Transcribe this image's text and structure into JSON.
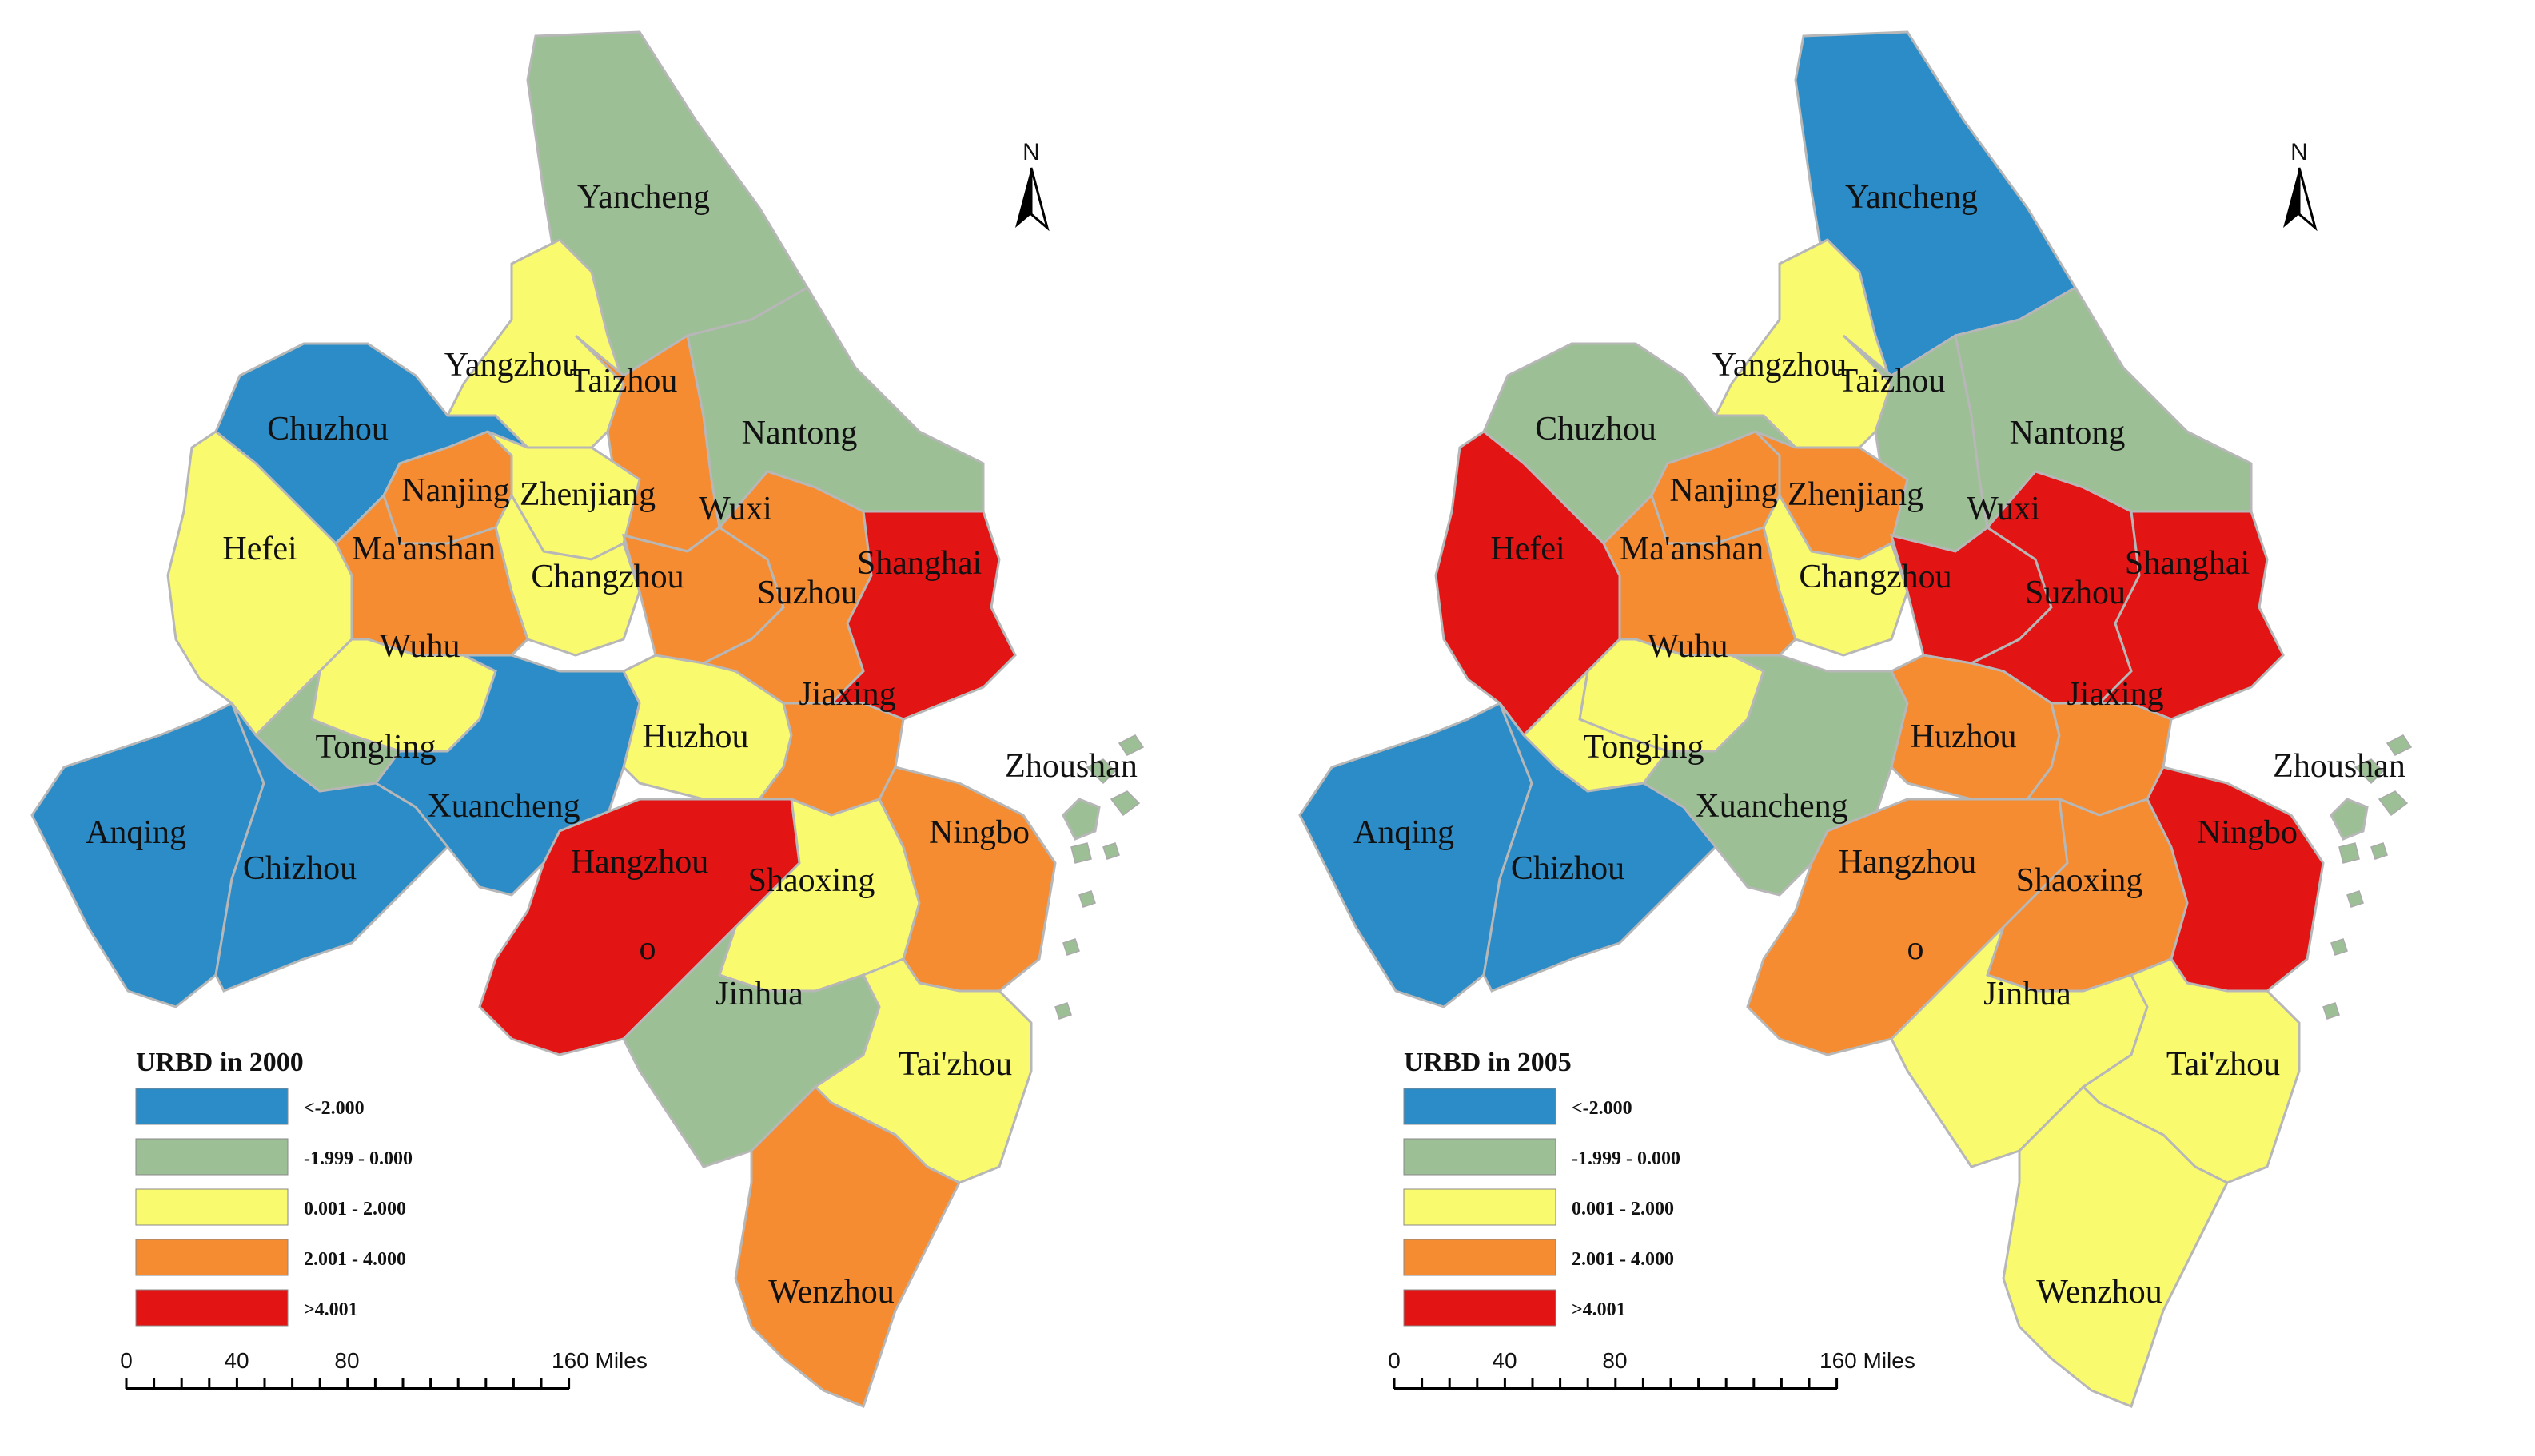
{
  "colors": {
    "c1": "#2b8cc8",
    "c2": "#9dbf96",
    "c3": "#fafa6e",
    "c4": "#f58c32",
    "c5": "#e31414",
    "outline": "#b7b7b7"
  },
  "legend_labels": [
    "<-2.000",
    "-1.999 - 0.000",
    "0.001 - 2.000",
    "2.001 - 4.000",
    ">4.001"
  ],
  "scale": {
    "ticks": [
      "0",
      "40",
      "80",
      "160 Miles"
    ]
  },
  "maps": [
    {
      "id": "left",
      "legend_title": "URBD in 2000",
      "north": "N",
      "marker": "o",
      "fills": {
        "yancheng": 2,
        "yangzhou": 3,
        "taizhou": 4,
        "nantong": 2,
        "chuzhou": 1,
        "nanjing": 4,
        "zhenjiang": 3,
        "changzhou": 3,
        "wuxi": 4,
        "suzhou": 4,
        "shanghai": 5,
        "hefei": 3,
        "maanshan": 4,
        "wuhu": 3,
        "tongling": 2,
        "xuancheng": 1,
        "huzhou": 3,
        "jiaxing": 4,
        "anqing": 1,
        "chizhou": 1,
        "hangzhou": 5,
        "shaoxing": 3,
        "ningbo": 4,
        "zhoushan": 2,
        "jinhua": 2,
        "taizhou2": 3,
        "wenzhou": 4
      },
      "labels": {
        "yancheng": "Yancheng",
        "yangzhou": "Yangzhou",
        "taizhou": "Taizhou",
        "nantong": "Nantong",
        "chuzhou": "Chuzhou",
        "nanjing": "Nanjing",
        "zhenjiang": "Zhenjiang",
        "hefei": "Hefei",
        "maanshan": "Ma'anshan",
        "changzhou": "Changzhou",
        "wuxi": "Wuxi",
        "suzhou": "Suzhou",
        "shanghai": "Shanghai",
        "wuhu": "Wuhu",
        "tongling": "Tongling",
        "huzhou": "Huzhou",
        "jiaxing": "Jiaxing",
        "xuancheng": "Xuancheng",
        "zhoushan": "Zhoushan",
        "anqing": "Anqing",
        "chizhou": "Chizhou",
        "hangzhou": "Hangzhou",
        "shaoxing": "Shaoxing",
        "ningbo": "Ningbo",
        "jinhua": "Jinhua",
        "taizhou2": "Tai'zhou",
        "wenzhou": "Wenzhou"
      }
    },
    {
      "id": "right",
      "legend_title": "URBD in 2005",
      "north": "N",
      "marker": "o",
      "fills": {
        "yancheng": 1,
        "yangzhou": 3,
        "taizhou": 2,
        "nantong": 2,
        "chuzhou": 2,
        "nanjing": 4,
        "zhenjiang": 4,
        "changzhou": 3,
        "wuxi": 5,
        "suzhou": 5,
        "shanghai": 5,
        "hefei": 5,
        "maanshan": 4,
        "wuhu": 3,
        "tongling": 3,
        "xuancheng": 2,
        "huzhou": 4,
        "jiaxing": 4,
        "anqing": 1,
        "chizhou": 1,
        "hangzhou": 4,
        "shaoxing": 4,
        "ningbo": 5,
        "zhoushan": 2,
        "jinhua": 3,
        "taizhou2": 3,
        "wenzhou": 3
      },
      "labels": {
        "yancheng": "Yancheng",
        "yangzhou": "Yangzhou",
        "taizhou": "Taizhou",
        "nantong": "Nantong",
        "chuzhou": "Chuzhou",
        "nanjing": "Nanjing",
        "zhenjiang": "Zhenjiang",
        "hefei": "Hefei",
        "maanshan": "Ma'anshan",
        "changzhou": "Changzhou",
        "wuxi": "Wuxi",
        "suzhou": "Suzhou",
        "shanghai": "Shanghai",
        "wuhu": "Wuhu",
        "tongling": "Tongling",
        "huzhou": "Huzhou",
        "jiaxing": "Jiaxing",
        "xuancheng": "Xuancheng",
        "zhoushan": "Zhoushan",
        "anqing": "Anqing",
        "chizhou": "Chizhou",
        "hangzhou": "Hangzhou",
        "shaoxing": "Shaoxing",
        "ningbo": "Ningbo",
        "jinhua": "Jinhua",
        "taizhou2": "Tai'zhou",
        "wenzhou": "Wenzhou"
      }
    }
  ]
}
